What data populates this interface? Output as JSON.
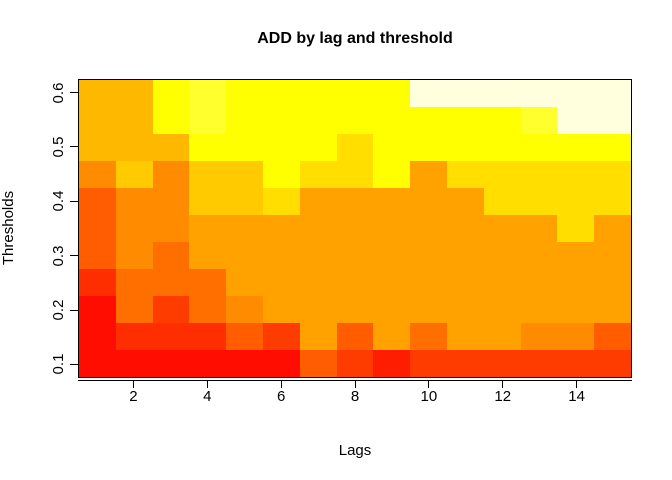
{
  "title": "ADD by lag and threshold",
  "chart_data": {
    "type": "heatmap",
    "title": "ADD by lag and threshold",
    "xlabel": "Lags",
    "ylabel": "Thresholds",
    "x_lags": [
      1,
      2,
      3,
      4,
      5,
      6,
      7,
      8,
      9,
      10,
      11,
      12,
      13,
      14,
      15
    ],
    "x_ticks": [
      2,
      4,
      6,
      8,
      10,
      12,
      14
    ],
    "y_ticks": [
      "0.1",
      "0.2",
      "0.3",
      "0.4",
      "0.5",
      "0.6"
    ],
    "y_thresholds_top_to_bottom": [
      0.6,
      0.55,
      0.5,
      0.45,
      0.4,
      0.35,
      0.3,
      0.25,
      0.2,
      0.15,
      0.1
    ],
    "axis_ranges": {
      "x": [
        0.5,
        15.5
      ],
      "y": [
        0.075,
        0.625
      ]
    },
    "legend": "none",
    "grid_lines": "off",
    "colormap": "R heat.colors style (red = low ADD, pale yellow = high ADD)",
    "palette": {
      "A": "#FF0D00",
      "B": "#FF1D00",
      "C": "#FF2E00",
      "D": "#FF3C00",
      "E": "#FF5D00",
      "F": "#FF6F00",
      "G": "#FF8B00",
      "H": "#FFA200",
      "I": "#FFB800",
      "J": "#FFCB00",
      "K": "#FFDE00",
      "L": "#FFFF00",
      "M": "#FFFF2E",
      "N": "#FFFFDE"
    },
    "grid_rows_top_to_bottom": [
      "IILMLLLLLNNNNNN",
      "IILMLLLLLLLLMNN",
      "IIILLLLKLLLLLLL",
      "GJGJJLKKLHKKKKK",
      "EGGJJKHHHHHKKKK",
      "EGGHHHHHHHHHHKH",
      "EGFHHHHHHHHHHHH",
      "CFFFHHHHHHHHHHH",
      "AFDFGHHHHHHHHHH",
      "ACCCEDHEHFHHGGE",
      "AAAAAAEDBDDDDDD"
    ]
  }
}
